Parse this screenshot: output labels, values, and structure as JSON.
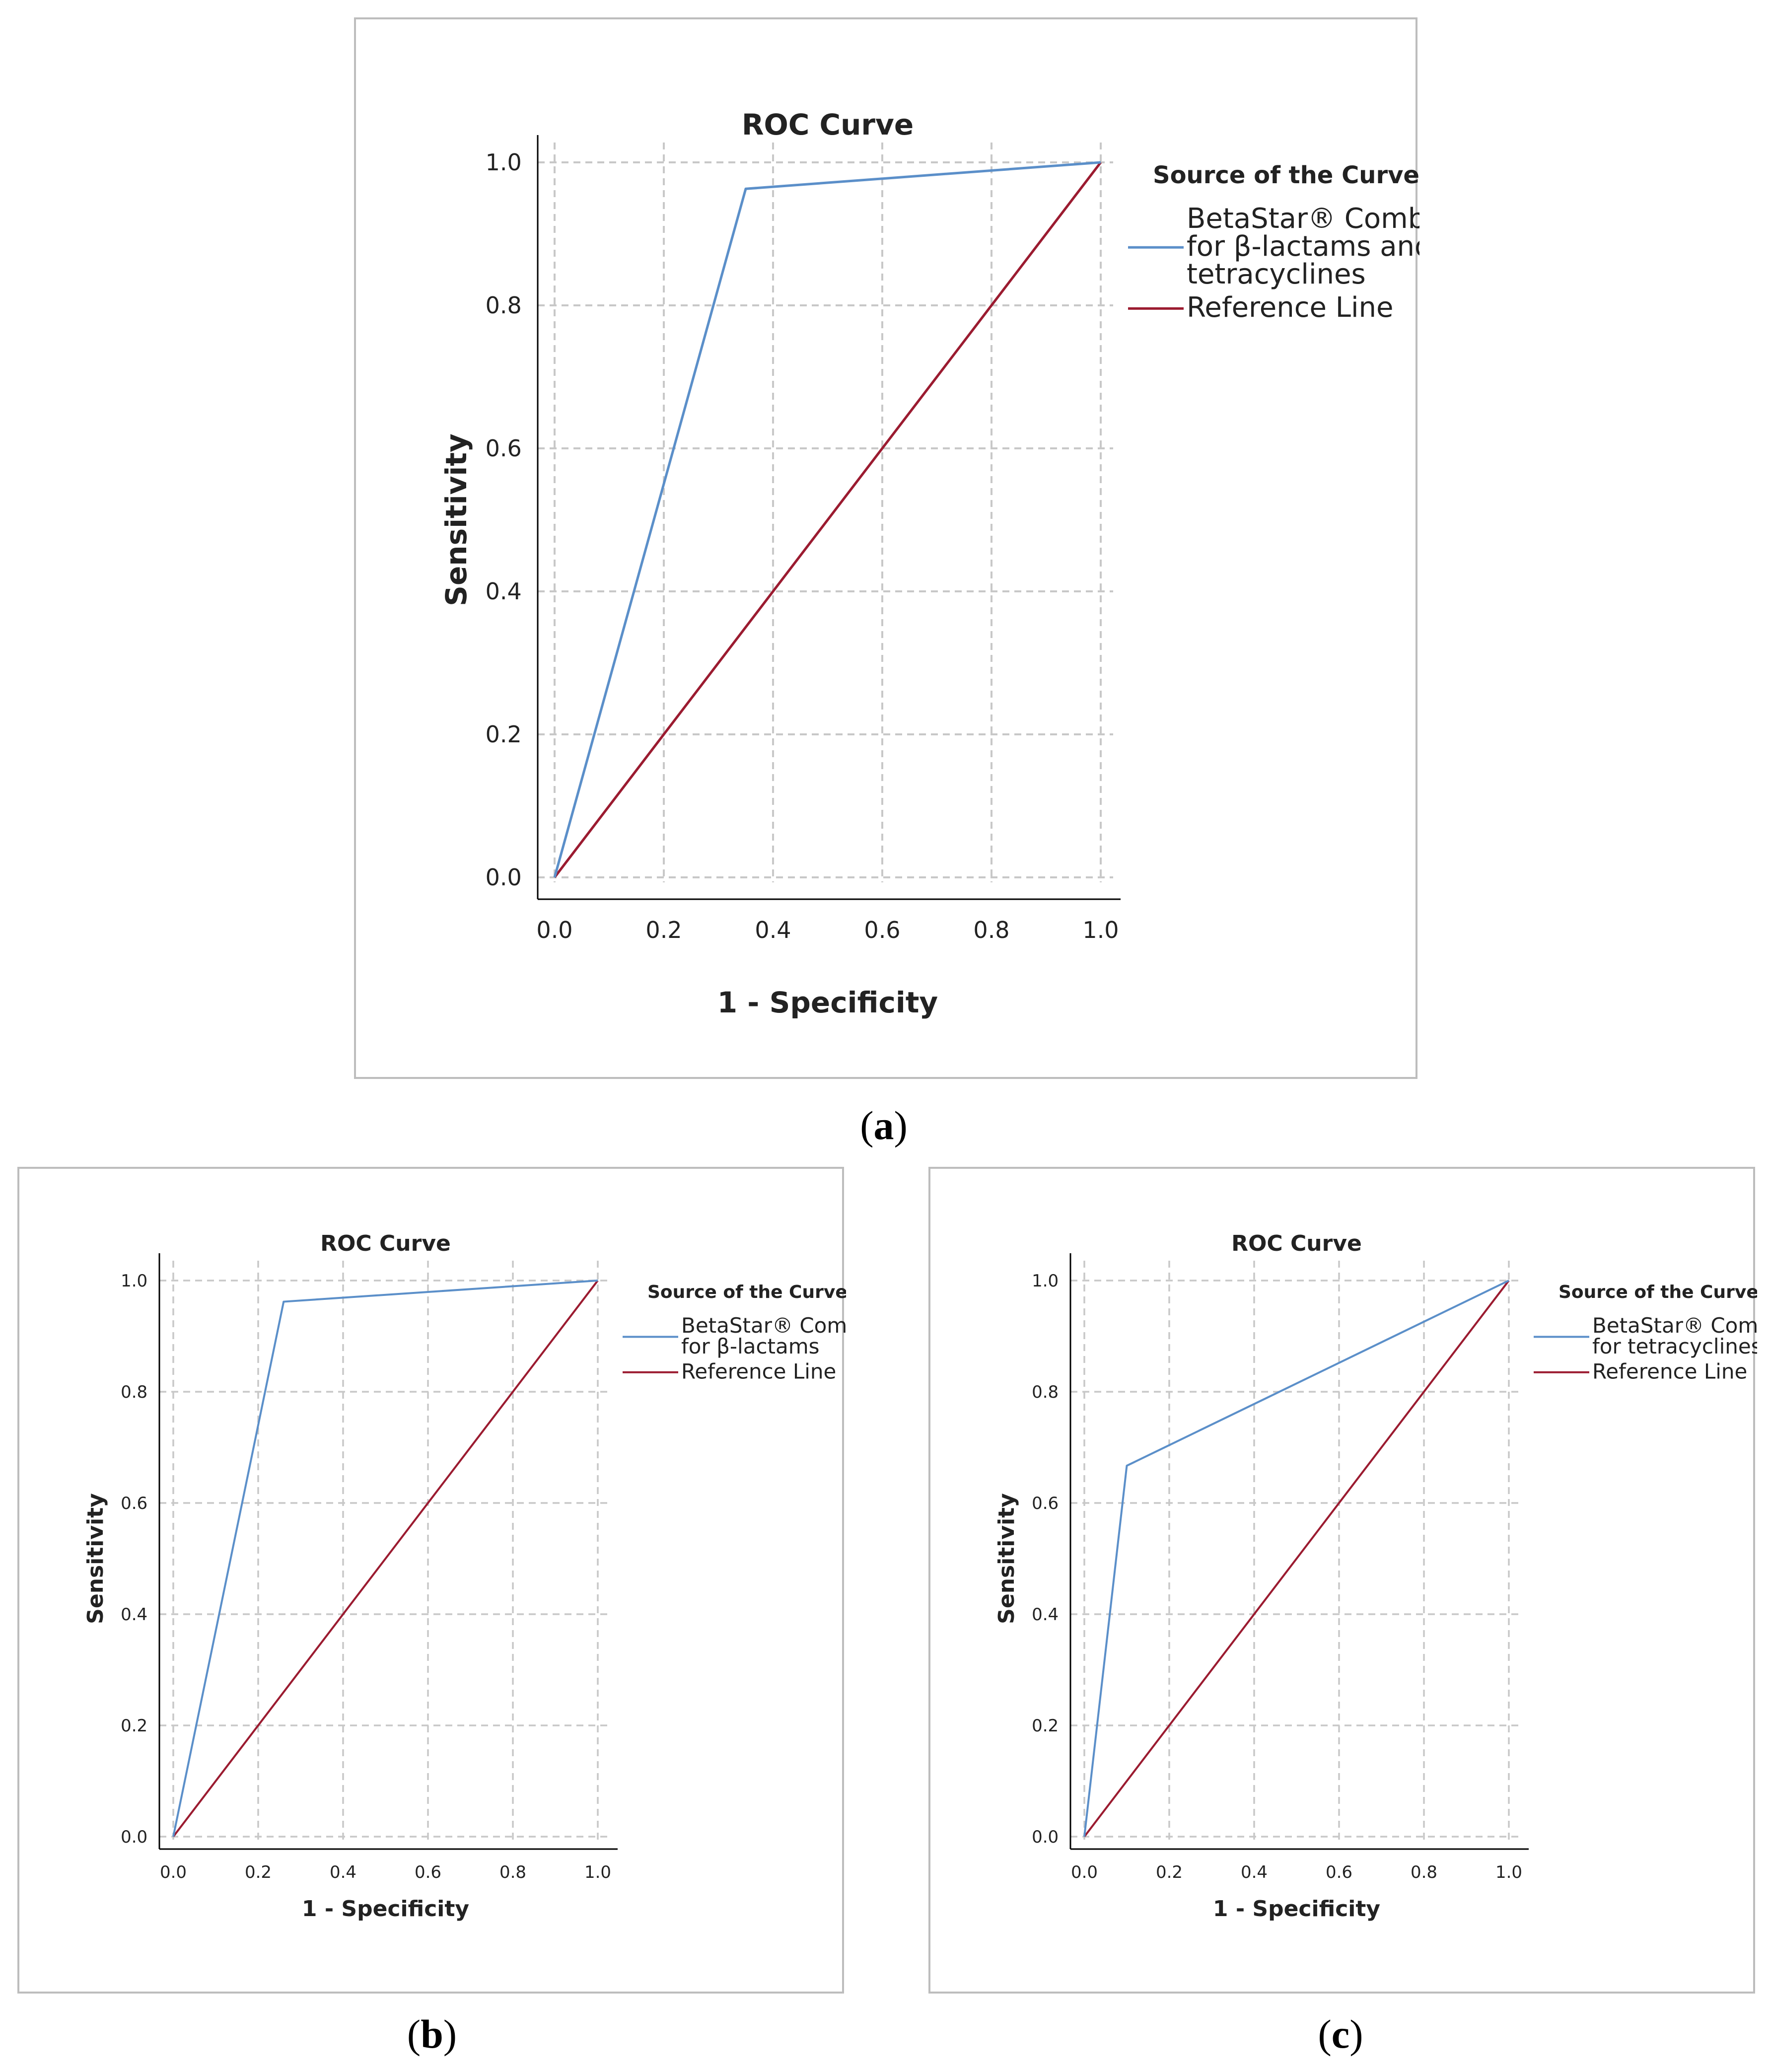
{
  "colors": {
    "curve": "#5b8fc9",
    "reference": "#9b1b30",
    "grid": "#c8c8c8",
    "axis": "#000000"
  },
  "captions": {
    "a": "a",
    "b": "b",
    "c": "c"
  },
  "chart_data": [
    {
      "id": "a",
      "type": "line",
      "title": "ROC Curve",
      "xlabel": "1 - Specificity",
      "ylabel": "Sensitivity",
      "xlim": [
        0,
        1
      ],
      "ylim": [
        0,
        1
      ],
      "xticks": [
        "0.0",
        "0.2",
        "0.4",
        "0.6",
        "0.8",
        "1.0"
      ],
      "yticks": [
        "0.0",
        "0.2",
        "0.4",
        "0.6",
        "0.8",
        "1.0"
      ],
      "grid": true,
      "legend_title": "Source of the Curve",
      "legend_position": "right",
      "series": [
        {
          "name": "BetaStar® Combo for β-lactams and tetracyclines",
          "name_lines": [
            "BetaStar® Combo",
            "for β-lactams and",
            "tetracyclines"
          ],
          "x": [
            0,
            0.35,
            1
          ],
          "y": [
            0,
            0.963,
            1
          ]
        },
        {
          "name": "Reference Line",
          "name_lines": [
            "Reference Line"
          ],
          "x": [
            0,
            1
          ],
          "y": [
            0,
            1
          ]
        }
      ]
    },
    {
      "id": "b",
      "type": "line",
      "title": "ROC Curve",
      "xlabel": "1 - Specificity",
      "ylabel": "Sensitivity",
      "xlim": [
        0,
        1
      ],
      "ylim": [
        0,
        1
      ],
      "xticks": [
        "0.0",
        "0.2",
        "0.4",
        "0.6",
        "0.8",
        "1.0"
      ],
      "yticks": [
        "0.0",
        "0.2",
        "0.4",
        "0.6",
        "0.8",
        "1.0"
      ],
      "grid": true,
      "legend_title": "Source of the Curve",
      "legend_position": "right",
      "series": [
        {
          "name": "BetaStar® Combo for β-lactams",
          "name_lines": [
            "BetaStar® Combo",
            "for β-lactams"
          ],
          "x": [
            0,
            0.26,
            1
          ],
          "y": [
            0,
            0.962,
            1
          ]
        },
        {
          "name": "Reference Line",
          "name_lines": [
            "Reference Line"
          ],
          "x": [
            0,
            1
          ],
          "y": [
            0,
            1
          ]
        }
      ]
    },
    {
      "id": "c",
      "type": "line",
      "title": "ROC Curve",
      "xlabel": "1 - Specificity",
      "ylabel": "Sensitivity",
      "xlim": [
        0,
        1
      ],
      "ylim": [
        0,
        1
      ],
      "xticks": [
        "0.0",
        "0.2",
        "0.4",
        "0.6",
        "0.8",
        "1.0"
      ],
      "yticks": [
        "0.0",
        "0.2",
        "0.4",
        "0.6",
        "0.8",
        "1.0"
      ],
      "grid": true,
      "legend_title": "Source of the Curve",
      "legend_position": "right",
      "series": [
        {
          "name": "BetaStar® Combo for tetracyclines",
          "name_lines": [
            "BetaStar® Combo",
            "for tetracyclines"
          ],
          "x": [
            0,
            0.1,
            1
          ],
          "y": [
            0,
            0.667,
            1
          ]
        },
        {
          "name": "Reference Line",
          "name_lines": [
            "Reference Line"
          ],
          "x": [
            0,
            1
          ],
          "y": [
            0,
            1
          ]
        }
      ]
    }
  ]
}
